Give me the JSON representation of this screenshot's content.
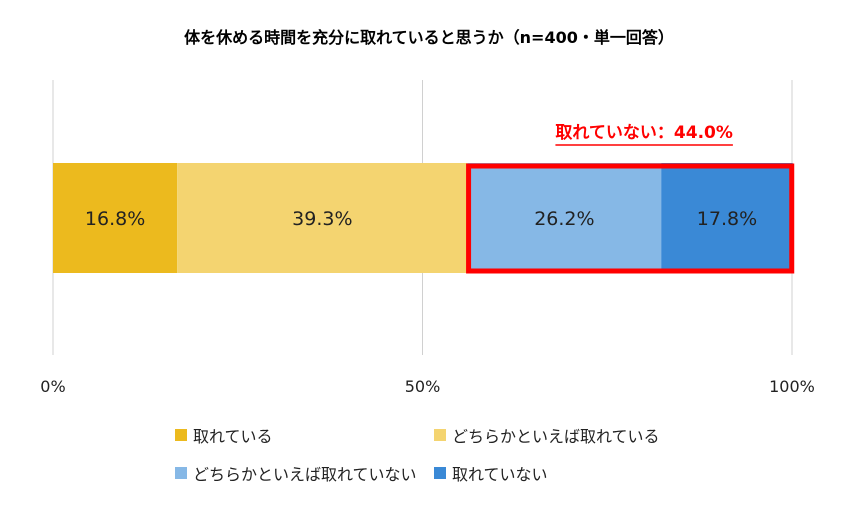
{
  "chart_data": {
    "type": "bar",
    "orientation": "horizontal-stacked",
    "title": "体を休める時間を充分に取れていると思うか（n=400・単一回答）",
    "xlim": [
      0,
      100
    ],
    "x_ticks": [
      "0%",
      "50%",
      "100%"
    ],
    "x_tick_values": [
      0,
      50,
      100
    ],
    "grid": true,
    "legend_position": "bottom",
    "series": [
      {
        "name": "取れている",
        "value": 16.8,
        "label": "16.8%",
        "color": "#ECBA1E"
      },
      {
        "name": "どちらかといえば取れている",
        "value": 39.3,
        "label": "39.3%",
        "color": "#F4D470"
      },
      {
        "name": "どちらかといえば取れていない",
        "value": 26.2,
        "label": "26.2%",
        "color": "#86B8E6"
      },
      {
        "name": "取れていない",
        "value": 17.8,
        "label": "17.8%",
        "color": "#3A89D6"
      }
    ],
    "annotation": {
      "text": "取れていない：44.0%",
      "value": 44.0,
      "color": "#FF0000",
      "highlight_series": [
        "どちらかといえば取れていない",
        "取れていない"
      ]
    }
  }
}
